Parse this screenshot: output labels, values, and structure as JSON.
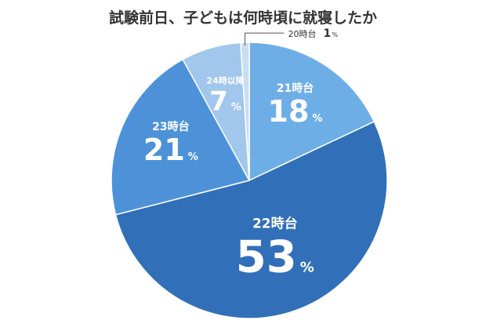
{
  "chart_data": {
    "type": "pie",
    "title": "試験前日、子どもは何時頃に就寝したか",
    "start": "top",
    "direction": "clockwise",
    "slices": [
      {
        "label": "21時台",
        "value": 18,
        "color": "#6eaee6"
      },
      {
        "label": "22時台",
        "value": 53,
        "color": "#316fb8"
      },
      {
        "label": "23時台",
        "value": 21,
        "color": "#4d92d8"
      },
      {
        "label": "24時以降",
        "value": 7,
        "color": "#a2c7ec"
      },
      {
        "label": "20時台",
        "value": 1,
        "color": "#c9def3"
      }
    ],
    "unit": "%"
  }
}
